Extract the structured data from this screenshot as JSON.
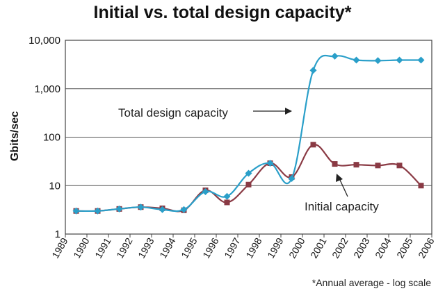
{
  "chart_data": {
    "type": "line",
    "title": "Initial vs. total design capacity*",
    "ylabel": "Gbits/sec",
    "xlabel": "",
    "y_scale": "log",
    "ylim": [
      1,
      10000
    ],
    "ytick_values": [
      1,
      10,
      100,
      1000,
      10000
    ],
    "ytick_labels": [
      "1",
      "10",
      "100",
      "1,000",
      "10,000"
    ],
    "xtick_labels": [
      "1989",
      "1990",
      "1991",
      "1992",
      "1993",
      "1994",
      "1995",
      "1996",
      "1997",
      "1998",
      "1999",
      "2000",
      "2001",
      "2002",
      "2003",
      "2004",
      "2005",
      "2006"
    ],
    "grid": "horizontal",
    "x": [
      1989.5,
      1990.5,
      1991.5,
      1992.5,
      1993.5,
      1994.5,
      1995.5,
      1996.5,
      1997.5,
      1998.5,
      1999.5,
      2000.5,
      2001.5,
      2002.5,
      2003.5,
      2004.5,
      2005.5
    ],
    "series": [
      {
        "name": "Total design capacity",
        "color": "#2a9fc9",
        "marker": "diamond",
        "values": [
          3.0,
          3.0,
          3.3,
          3.6,
          3.2,
          3.2,
          7.5,
          6.0,
          18,
          29,
          14,
          2400,
          4700,
          3900,
          3800,
          3900,
          3900
        ]
      },
      {
        "name": "Initial capacity",
        "color": "#8a3a44",
        "marker": "square",
        "values": [
          3.0,
          3.0,
          3.3,
          3.6,
          3.4,
          3.1,
          8.0,
          4.5,
          10.5,
          29,
          15,
          70,
          28,
          27,
          26,
          26,
          10
        ]
      }
    ],
    "annotations": {
      "total_label": "Total design capacity",
      "initial_label": "Initial capacity",
      "footnote": "*Annual average - log scale"
    }
  }
}
